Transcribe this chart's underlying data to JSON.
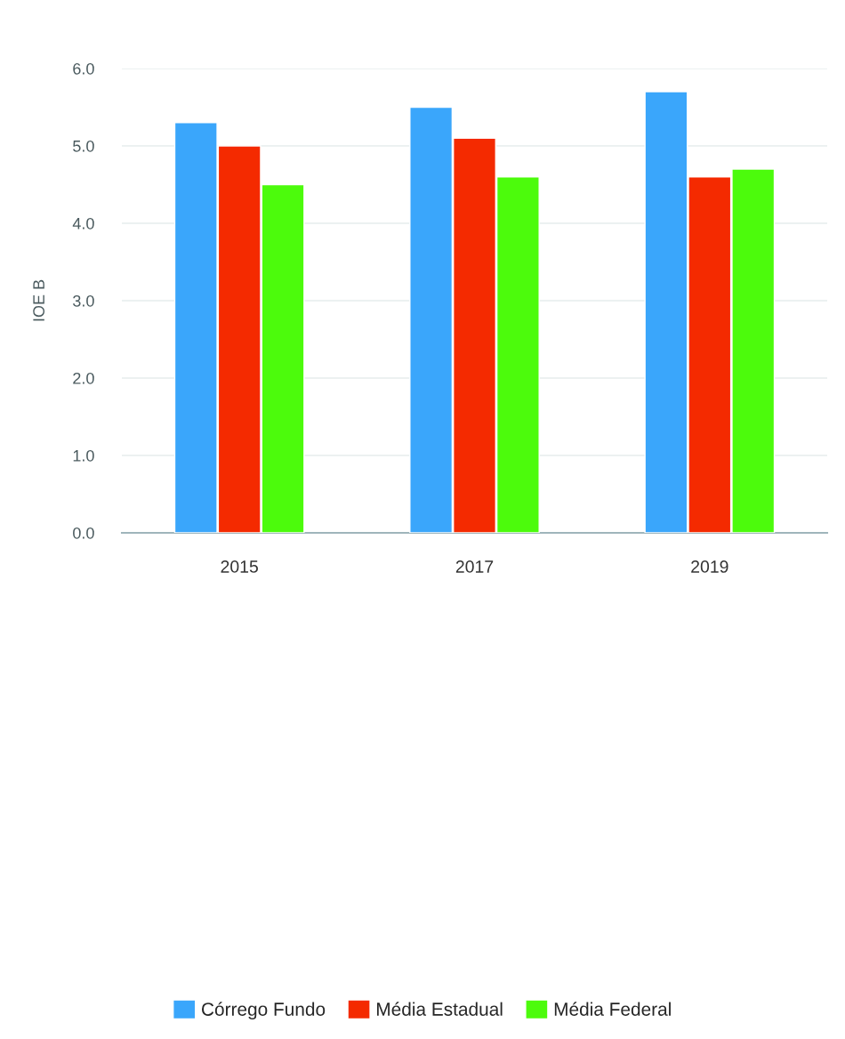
{
  "chart_data": {
    "type": "bar",
    "ylabel": "IOE B",
    "categories": [
      "2015",
      "2017",
      "2019"
    ],
    "series": [
      {
        "name": "Córrego Fundo",
        "color": "#3aa6fb",
        "values": [
          5.3,
          5.5,
          5.7
        ]
      },
      {
        "name": "Média Estadual",
        "color": "#f42a00",
        "values": [
          5.0,
          5.1,
          4.6
        ]
      },
      {
        "name": "Média Federal",
        "color": "#4cfb0c",
        "values": [
          4.5,
          4.6,
          4.7
        ]
      }
    ],
    "ylim": [
      0,
      6
    ],
    "yticks": [
      {
        "value": 0,
        "label": "0.0"
      },
      {
        "value": 1,
        "label": "1.0"
      },
      {
        "value": 2,
        "label": "2.0"
      },
      {
        "value": 3,
        "label": "3.0"
      },
      {
        "value": 4,
        "label": "4.0"
      },
      {
        "value": 5,
        "label": "5.0"
      },
      {
        "value": 6,
        "label": "6.0"
      }
    ],
    "grid": "y",
    "legend": "bottom"
  }
}
